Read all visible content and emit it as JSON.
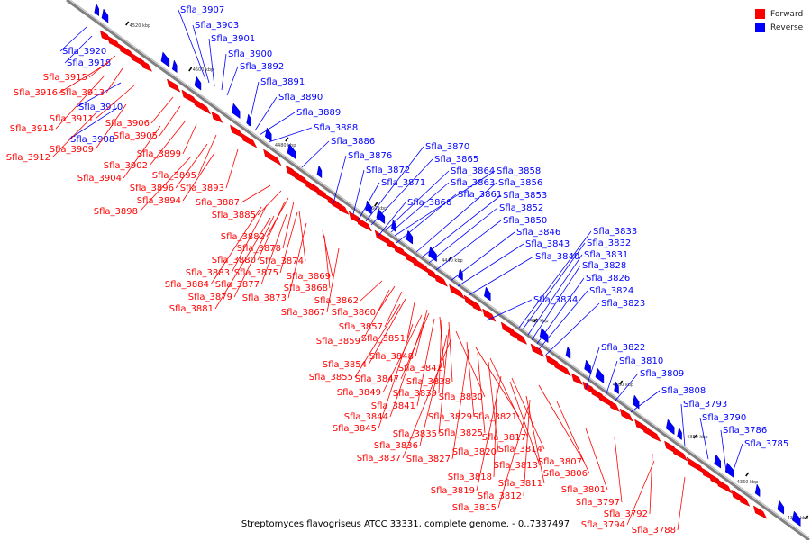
{
  "colors": {
    "forward": "#ff0000",
    "reverse": "#0000ff",
    "backbone": "#808080",
    "tick": "#000000"
  },
  "legend": {
    "forward_label": "Forward",
    "reverse_label": "Reverse"
  },
  "caption": "Streptomyces flavogriseus ATCC 33331, complete genome. - 0..7337497",
  "scale_labels": [
    "4520 kbp",
    "4500 kbp",
    "4480 kbp",
    "4460 kbp",
    "4440 kbp",
    "4420 kbp",
    "4400 kbp",
    "4380 kbp",
    "4360 kbp",
    "4340 kbp"
  ],
  "reverse_genes": [
    "Sfla_3907",
    "Sfla_3903",
    "Sfla_3901",
    "Sfla_3900",
    "Sfla_3892",
    "Sfla_3891",
    "Sfla_3890",
    "Sfla_3889",
    "Sfla_3888",
    "Sfla_3886",
    "Sfla_3876",
    "Sfla_3870",
    "Sfla_3865",
    "Sfla_3872",
    "Sfla_3864",
    "Sfla_3858",
    "Sfla_3871",
    "Sfla_3863",
    "Sfla_3856",
    "Sfla_3861",
    "Sfla_3853",
    "Sfla_3866",
    "Sfla_3852",
    "Sfla_3850",
    "Sfla_3846",
    "Sfla_3833",
    "Sfla_3843",
    "Sfla_3832",
    "Sfla_3840",
    "Sfla_3831",
    "Sfla_3828",
    "Sfla_3826",
    "Sfla_3824",
    "Sfla_3834",
    "Sfla_3823",
    "Sfla_3822",
    "Sfla_3810",
    "Sfla_3809",
    "Sfla_3808",
    "Sfla_3793",
    "Sfla_3790",
    "Sfla_3786",
    "Sfla_3785",
    "Sfla_3920",
    "Sfla_3918",
    "Sfla_3910",
    "Sfla_3908"
  ],
  "forward_genes": [
    "Sfla_3915",
    "Sfla_3916",
    "Sfla_3913",
    "Sfla_3911",
    "Sfla_3914",
    "Sfla_3906",
    "Sfla_3905",
    "Sfla_3909",
    "Sfla_3912",
    "Sfla_3899",
    "Sfla_3902",
    "Sfla_3895",
    "Sfla_3904",
    "Sfla_3896",
    "Sfla_3893",
    "Sfla_3894",
    "Sfla_3887",
    "Sfla_3898",
    "Sfla_3885",
    "Sfla_3882",
    "Sfla_3878",
    "Sfla_3880",
    "Sfla_3874",
    "Sfla_3883",
    "Sfla_3875",
    "Sfla_3869",
    "Sfla_3884",
    "Sfla_3877",
    "Sfla_3868",
    "Sfla_3879",
    "Sfla_3873",
    "Sfla_3862",
    "Sfla_3881",
    "Sfla_3867",
    "Sfla_3860",
    "Sfla_3857",
    "Sfla_3859",
    "Sfla_3851",
    "Sfla_3848",
    "Sfla_3854",
    "Sfla_3842",
    "Sfla_3855",
    "Sfla_3847",
    "Sfla_3838",
    "Sfla_3849",
    "Sfla_3839",
    "Sfla_3830",
    "Sfla_3841",
    "Sfla_3844",
    "Sfla_3829",
    "Sfla_3821",
    "Sfla_3845",
    "Sfla_3835",
    "Sfla_3825",
    "Sfla_3817",
    "Sfla_3836",
    "Sfla_3820",
    "Sfla_3814",
    "Sfla_3837",
    "Sfla_3827",
    "Sfla_3813",
    "Sfla_3807",
    "Sfla_3818",
    "Sfla_3811",
    "Sfla_3806",
    "Sfla_3819",
    "Sfla_3812",
    "Sfla_3801",
    "Sfla_3815",
    "Sfla_3797",
    "Sfla_3792",
    "Sfla_3794",
    "Sfla_3788"
  ]
}
